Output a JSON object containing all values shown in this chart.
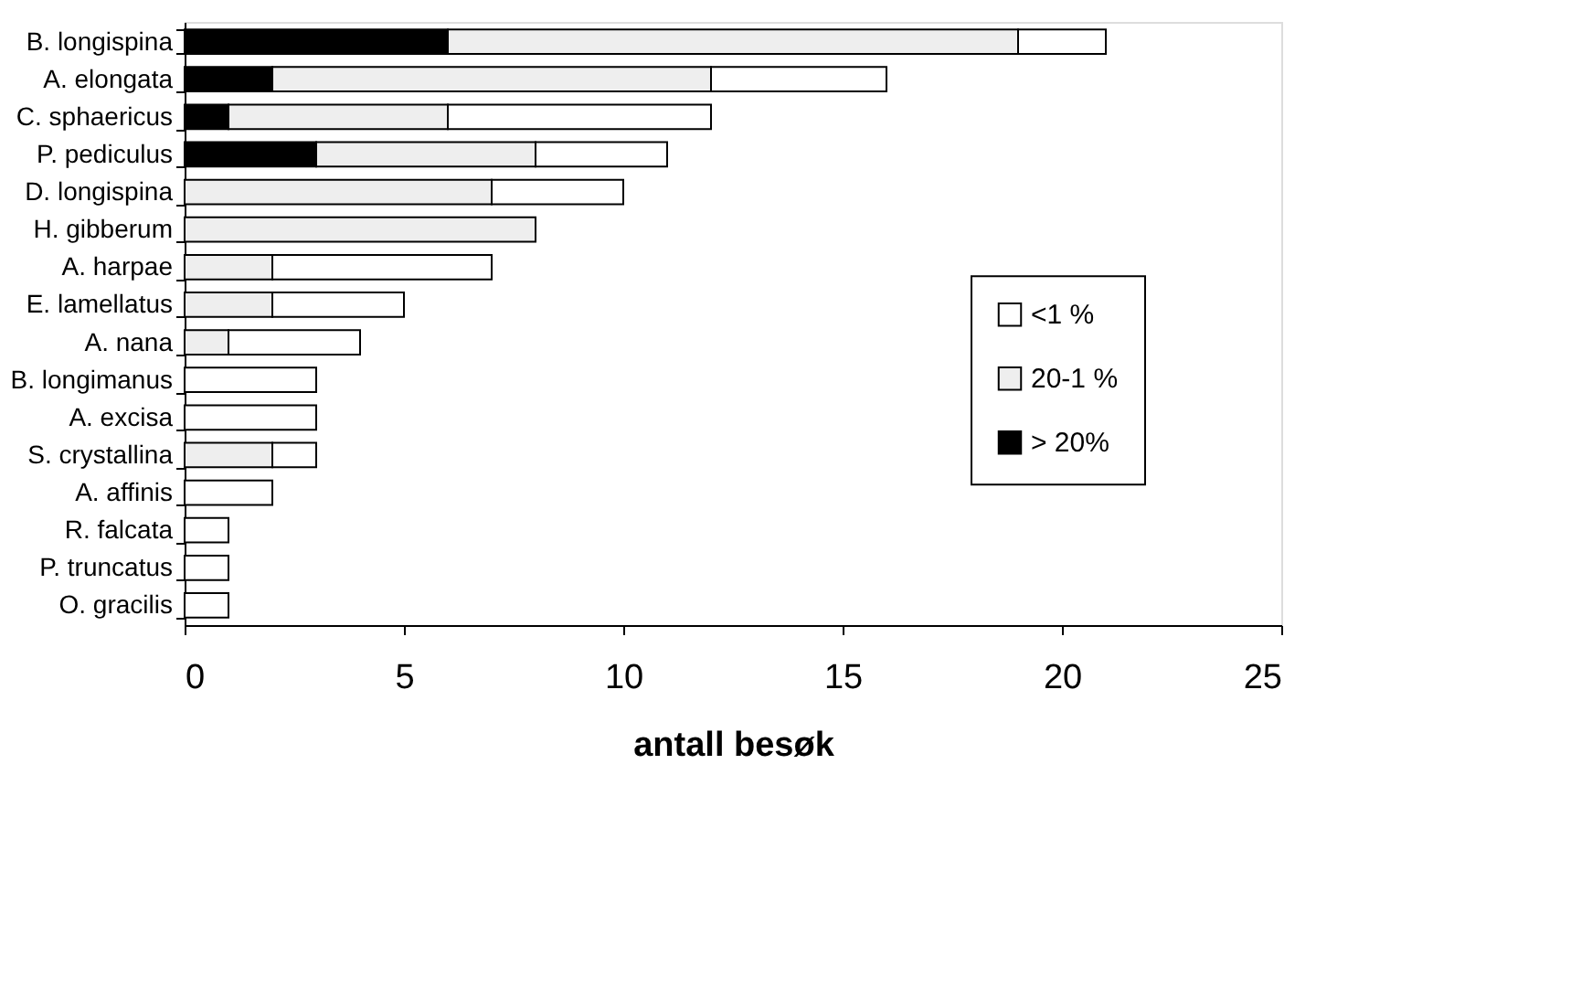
{
  "chart_data": {
    "type": "bar",
    "orientation": "horizontal",
    "stacked": true,
    "xlabel": "antall besøk",
    "categories": [
      "B. longispina",
      "A. elongata",
      "C. sphaericus",
      "P. pediculus",
      "D. longispina",
      "H. gibberum",
      "A. harpae",
      "E. lamellatus",
      "A. nana",
      "B. longimanus",
      "A. excisa",
      "S. crystallina",
      "A. affinis",
      "R. falcata",
      "P. truncatus",
      "O. gracilis"
    ],
    "series": [
      {
        "name": "> 20%",
        "color": "#000000",
        "values": [
          6,
          2,
          1,
          3,
          0,
          0,
          0,
          0,
          0,
          0,
          0,
          0,
          0,
          0,
          0,
          0
        ]
      },
      {
        "name": "20-1 %",
        "color": "#eeeeee",
        "values": [
          13,
          10,
          5,
          5,
          7,
          8,
          2,
          2,
          1,
          0,
          0,
          2,
          0,
          0,
          0,
          0
        ]
      },
      {
        "name": "<1 %",
        "color": "#ffffff",
        "values": [
          2,
          4,
          6,
          3,
          3,
          0,
          5,
          3,
          3,
          3,
          3,
          1,
          2,
          1,
          1,
          1
        ]
      }
    ],
    "xlim": [
      0,
      25
    ],
    "xticks": [
      0,
      5,
      10,
      15,
      20,
      25
    ],
    "grid": false,
    "legend": "right"
  }
}
